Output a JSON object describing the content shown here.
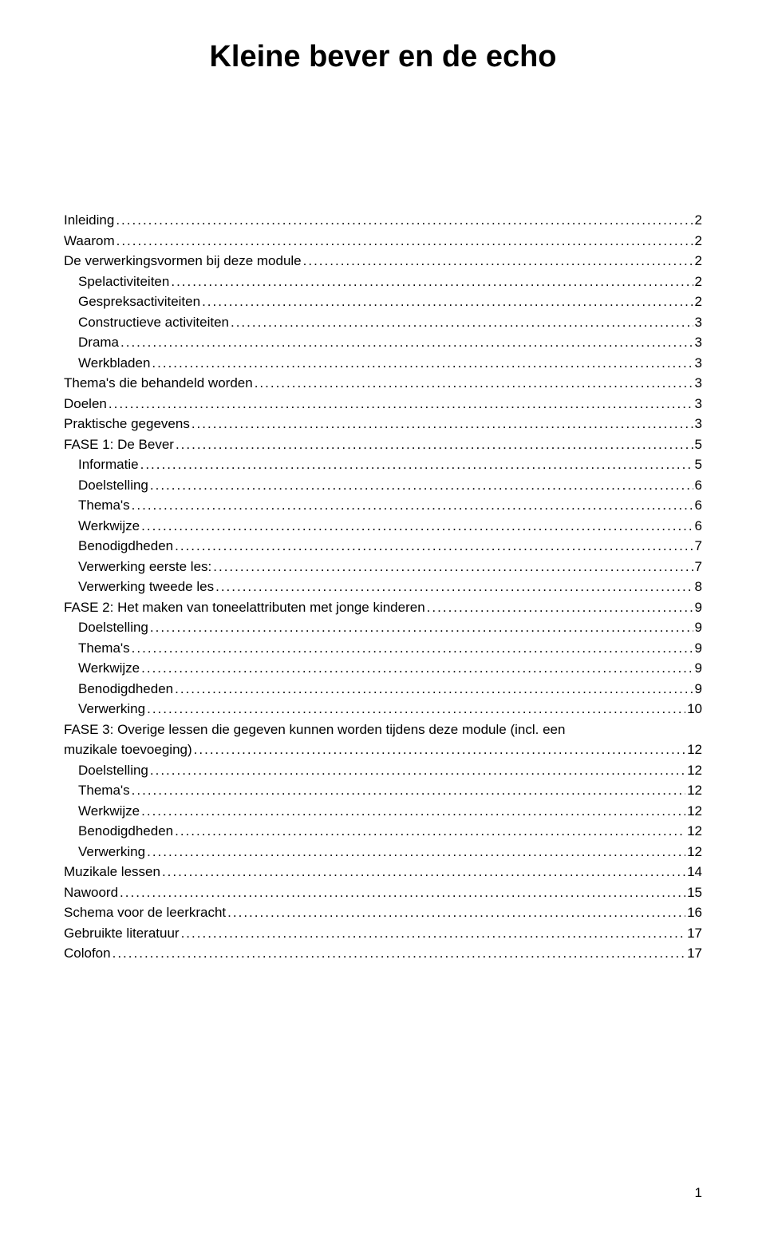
{
  "title": "Kleine bever en de echo",
  "pageNumber": "1",
  "toc": [
    {
      "label": "Inleiding",
      "page": "2",
      "indent": 0
    },
    {
      "label": "Waarom",
      "page": "2",
      "indent": 0
    },
    {
      "label": "De verwerkingsvormen bij deze module",
      "page": "2",
      "indent": 0
    },
    {
      "label": "Spelactiviteiten",
      "page": "2",
      "indent": 1
    },
    {
      "label": "Gespreksactiviteiten",
      "page": "2",
      "indent": 1
    },
    {
      "label": "Constructieve activiteiten",
      "page": "3",
      "indent": 1
    },
    {
      "label": "Drama",
      "page": "3",
      "indent": 1
    },
    {
      "label": "Werkbladen",
      "page": "3",
      "indent": 1
    },
    {
      "label": "Thema's die behandeld worden",
      "page": "3",
      "indent": 0
    },
    {
      "label": "Doelen",
      "page": "3",
      "indent": 0
    },
    {
      "label": "Praktische gegevens",
      "page": "3",
      "indent": 0
    },
    {
      "label": "FASE 1: De Bever",
      "page": "5",
      "indent": 0
    },
    {
      "label": "Informatie",
      "page": "5",
      "indent": 1
    },
    {
      "label": "Doelstelling",
      "page": "6",
      "indent": 1
    },
    {
      "label": "Thema's",
      "page": "6",
      "indent": 1
    },
    {
      "label": "Werkwijze",
      "page": "6",
      "indent": 1
    },
    {
      "label": "Benodigdheden",
      "page": "7",
      "indent": 1
    },
    {
      "label": "Verwerking eerste les:",
      "page": "7",
      "indent": 1
    },
    {
      "label": "Verwerking tweede les",
      "page": "8",
      "indent": 1
    },
    {
      "label": "FASE 2: Het maken van toneelattributen met jonge kinderen",
      "page": "9",
      "indent": 0
    },
    {
      "label": "Doelstelling",
      "page": "9",
      "indent": 1
    },
    {
      "label": "Thema's",
      "page": "9",
      "indent": 1
    },
    {
      "label": "Werkwijze",
      "page": "9",
      "indent": 1
    },
    {
      "label": "Benodigdheden",
      "page": "9",
      "indent": 1
    },
    {
      "label": "Verwerking",
      "page": "10",
      "indent": 1
    },
    {
      "label": "FASE 3: Overige lessen die gegeven kunnen worden tijdens deze module (incl. een muzikale toevoeging)",
      "page": "12",
      "indent": 0,
      "wrap": true
    },
    {
      "label": "Doelstelling",
      "page": "12",
      "indent": 1
    },
    {
      "label": "Thema's",
      "page": "12",
      "indent": 1
    },
    {
      "label": "Werkwijze",
      "page": "12",
      "indent": 1
    },
    {
      "label": "Benodigdheden",
      "page": "12",
      "indent": 1
    },
    {
      "label": "Verwerking",
      "page": "12",
      "indent": 1
    },
    {
      "label": "Muzikale lessen",
      "page": "14",
      "indent": 0
    },
    {
      "label": "Nawoord",
      "page": "15",
      "indent": 0
    },
    {
      "label": "Schema voor de leerkracht",
      "page": "16",
      "indent": 0
    },
    {
      "label": "Gebruikte literatuur",
      "page": "17",
      "indent": 0
    },
    {
      "label": "Colofon",
      "page": "17",
      "indent": 0
    }
  ],
  "wrapFirstLine": "FASE 3: Overige lessen die gegeven kunnen worden tijdens deze module (incl. een",
  "wrapSecondLine": "muzikale toevoeging)"
}
